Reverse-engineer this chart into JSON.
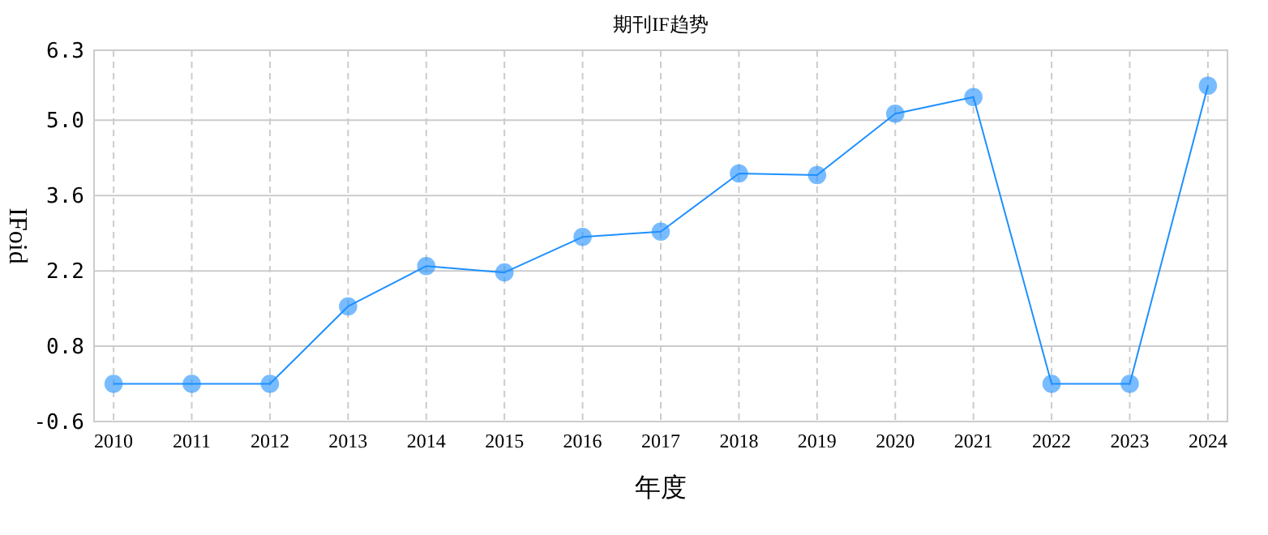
{
  "chart_data": {
    "type": "line",
    "title": "期刊IF趋势",
    "xlabel": "年度",
    "ylabel": "IFoid",
    "categories": [
      "2010",
      "2011",
      "2012",
      "2013",
      "2014",
      "2015",
      "2016",
      "2017",
      "2018",
      "2019",
      "2020",
      "2021",
      "2022",
      "2023",
      "2024"
    ],
    "series": [
      {
        "color": "#1e90ff",
        "values": [
          0.1,
          0.1,
          0.1,
          1.54,
          2.29,
          2.17,
          2.83,
          2.93,
          4.01,
          3.98,
          5.12,
          5.43,
          0.1,
          0.1,
          5.64
        ]
      }
    ],
    "ylim": [
      -0.6,
      6.3
    ],
    "yticks": [
      -0.6,
      0.8,
      2.2,
      3.6,
      {
        "value": 5,
        "label": "5.0"
      },
      6.3
    ],
    "grid": true,
    "marker": "circle",
    "line_style": "solid"
  }
}
